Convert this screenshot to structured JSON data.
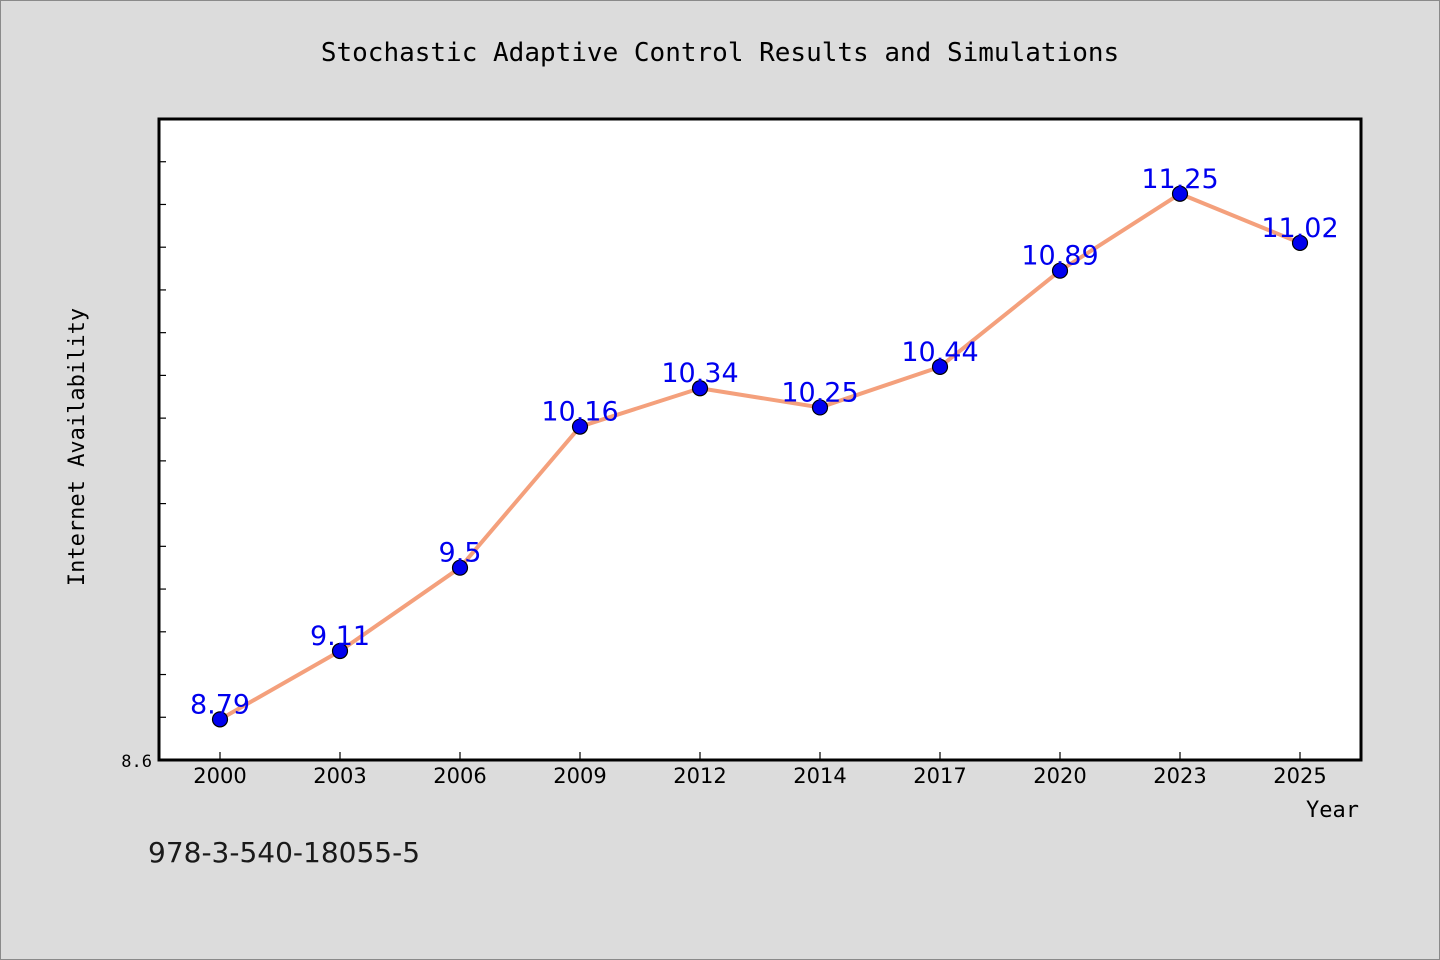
{
  "chart_data": {
    "type": "line",
    "title": "Stochastic Adaptive Control Results and Simulations",
    "xlabel": "Year",
    "ylabel": "Internet Availability",
    "categories": [
      "2000",
      "2003",
      "2006",
      "2009",
      "2012",
      "2014",
      "2017",
      "2020",
      "2023",
      "2025"
    ],
    "series": [
      {
        "values": [
          8.79,
          9.11,
          9.5,
          10.16,
          10.34,
          10.25,
          10.44,
          10.89,
          11.25,
          11.02
        ],
        "labels": [
          "8.79",
          "9.11",
          "9.5",
          "10.16",
          "10.34",
          "10.25",
          "10.44",
          "10.89",
          "11.25",
          "11.02"
        ],
        "line_color": "#f4a07c",
        "marker_color": "#0000ee",
        "label_color": "#0000ee"
      }
    ],
    "ylim": [
      8.6,
      11.6
    ],
    "y_tick_labels": [
      "8.6"
    ],
    "grid": false,
    "legend": "none"
  },
  "annotation": "978-3-540-18055-5",
  "colors": {
    "background": "#dcdcdc",
    "plot_background": "#ffffff",
    "axis": "#000000"
  }
}
